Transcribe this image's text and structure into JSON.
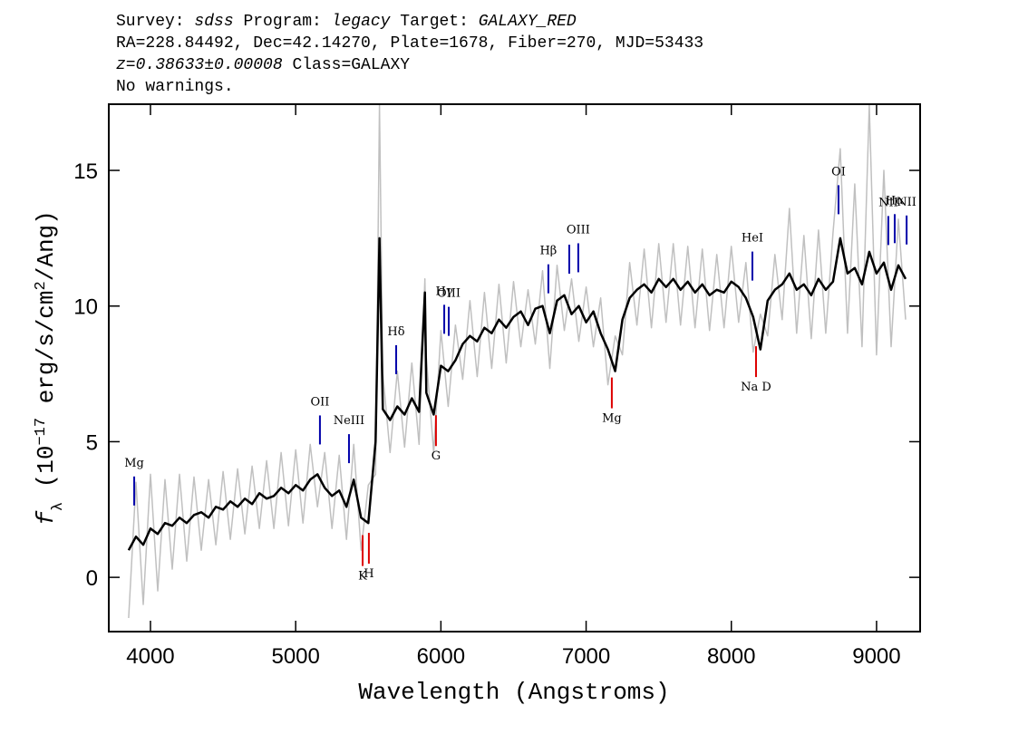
{
  "chart_data": {
    "type": "line",
    "header": [
      [
        {
          "text": "Survey: "
        },
        {
          "text": "sdss",
          "italic": true
        },
        {
          "text": " Program: "
        },
        {
          "text": "legacy",
          "italic": true
        },
        {
          "text": " Target: "
        },
        {
          "text": "GALAXY_RED",
          "italic": true
        }
      ],
      [
        {
          "text": "RA=228.84492, Dec=42.14270, Plate=1678, Fiber=270, MJD=53433"
        }
      ],
      [
        {
          "text": "z=0.38633±0.00008",
          "italic": true
        },
        {
          "text": " Class=GALAXY"
        }
      ],
      [
        {
          "text": "No warnings."
        }
      ]
    ],
    "x_label": "Wavelength (Angstroms)",
    "y_label": [
      {
        "text": "f",
        "italic": true
      },
      {
        "text": "λ",
        "shift": "sub"
      },
      {
        "text": " (10"
      },
      {
        "text": "−17",
        "shift": "super"
      },
      {
        "text": " erg/s/cm"
      },
      {
        "text": "2",
        "shift": "super"
      },
      {
        "text": "/Ang)"
      }
    ],
    "xlim": [
      3713,
      9300
    ],
    "ylim": [
      -2.0,
      17.44
    ],
    "xticks": [
      4000,
      5000,
      6000,
      7000,
      8000,
      9000
    ],
    "yticks": [
      0,
      5,
      10,
      15
    ],
    "x": [
      3850,
      3900,
      3950,
      4000,
      4050,
      4100,
      4150,
      4200,
      4250,
      4300,
      4350,
      4400,
      4450,
      4500,
      4550,
      4600,
      4650,
      4700,
      4750,
      4800,
      4850,
      4900,
      4950,
      5000,
      5050,
      5100,
      5150,
      5200,
      5250,
      5300,
      5350,
      5400,
      5450,
      5500,
      5550,
      5577,
      5600,
      5650,
      5700,
      5750,
      5800,
      5850,
      5890,
      5900,
      5950,
      6000,
      6050,
      6100,
      6150,
      6200,
      6250,
      6300,
      6350,
      6400,
      6450,
      6500,
      6550,
      6600,
      6650,
      6700,
      6750,
      6800,
      6850,
      6900,
      6950,
      7000,
      7050,
      7100,
      7150,
      7200,
      7250,
      7300,
      7350,
      7400,
      7450,
      7500,
      7550,
      7600,
      7650,
      7700,
      7750,
      7800,
      7850,
      7900,
      7950,
      8000,
      8050,
      8100,
      8150,
      8200,
      8250,
      8300,
      8350,
      8400,
      8450,
      8500,
      8550,
      8600,
      8650,
      8700,
      8750,
      8800,
      8850,
      8900,
      8950,
      9000,
      9050,
      9100,
      9150,
      9200
    ],
    "series": [
      {
        "color": "#c0c0c0",
        "values": [
          -1.5,
          3.5,
          -1.0,
          3.8,
          -0.5,
          3.6,
          0.3,
          3.8,
          0.6,
          3.7,
          1.0,
          3.6,
          1.2,
          3.9,
          1.4,
          4.0,
          1.6,
          4.1,
          1.8,
          4.3,
          1.8,
          4.6,
          1.9,
          4.7,
          2.0,
          4.9,
          2.6,
          4.6,
          1.8,
          4.5,
          1.4,
          4.9,
          1.0,
          3.4,
          3.8,
          17.4,
          7.5,
          4.6,
          7.6,
          4.8,
          7.9,
          4.9,
          11.0,
          8.1,
          4.6,
          9.1,
          6.3,
          9.3,
          7.3,
          10.2,
          7.4,
          10.5,
          7.7,
          10.8,
          7.9,
          10.9,
          8.5,
          10.6,
          8.6,
          11.3,
          7.7,
          11.5,
          9.1,
          11.0,
          8.7,
          10.7,
          8.5,
          10.3,
          7.1,
          8.9,
          8.2,
          11.6,
          9.3,
          12.1,
          9.2,
          12.3,
          9.4,
          12.3,
          9.3,
          12.2,
          9.2,
          12.1,
          9.1,
          11.9,
          9.2,
          12.2,
          9.4,
          11.6,
          8.3,
          9.7,
          8.9,
          11.9,
          9.5,
          13.6,
          9.0,
          12.6,
          8.8,
          12.8,
          9.0,
          12.7,
          15.8,
          9.0,
          14.5,
          8.5,
          17.4,
          8.2,
          15.0,
          8.5,
          13.2,
          9.5
        ]
      },
      {
        "color": "#000000",
        "values": [
          1.0,
          1.5,
          1.2,
          1.8,
          1.6,
          2.0,
          1.9,
          2.2,
          2.0,
          2.3,
          2.4,
          2.2,
          2.6,
          2.5,
          2.8,
          2.6,
          2.9,
          2.7,
          3.1,
          2.9,
          3.0,
          3.3,
          3.1,
          3.4,
          3.2,
          3.6,
          3.8,
          3.3,
          3.0,
          3.2,
          2.6,
          3.6,
          2.2,
          2.0,
          5.0,
          12.5,
          6.2,
          5.8,
          6.3,
          6.0,
          6.6,
          6.1,
          10.5,
          6.8,
          6.0,
          7.8,
          7.6,
          8.0,
          8.6,
          8.9,
          8.7,
          9.2,
          9.0,
          9.5,
          9.2,
          9.6,
          9.8,
          9.3,
          9.9,
          10.0,
          9.0,
          10.2,
          10.4,
          9.7,
          10.0,
          9.4,
          9.8,
          9.0,
          8.4,
          7.6,
          9.5,
          10.3,
          10.6,
          10.8,
          10.5,
          11.0,
          10.7,
          11.0,
          10.6,
          10.9,
          10.5,
          10.8,
          10.4,
          10.6,
          10.5,
          10.9,
          10.7,
          10.3,
          9.6,
          8.4,
          10.2,
          10.6,
          10.8,
          11.2,
          10.6,
          10.8,
          10.4,
          11.0,
          10.6,
          10.9,
          12.5,
          11.2,
          11.4,
          10.8,
          12.0,
          11.2,
          11.6,
          10.6,
          11.5,
          11.0
        ]
      }
    ],
    "lines": [
      {
        "label": "Mg",
        "wavelength": 3888,
        "kind": "emission",
        "color": "#0000aa"
      },
      {
        "label": "OII",
        "wavelength": 5167,
        "kind": "emission",
        "color": "#0000aa"
      },
      {
        "label": "NeIII",
        "wavelength": 5367,
        "kind": "emission",
        "color": "#0000aa"
      },
      {
        "label": "Hδ",
        "wavelength": 5692,
        "kind": "emission",
        "color": "#0000aa"
      },
      {
        "label": "Hγ",
        "wavelength": 6023,
        "kind": "emission",
        "color": "#0000aa"
      },
      {
        "label": "OIII",
        "wavelength": 6054,
        "kind": "emission",
        "color": "#0000aa"
      },
      {
        "label": "Hβ",
        "wavelength": 6740,
        "kind": "emission",
        "color": "#0000aa"
      },
      {
        "label": null,
        "wavelength": 6884,
        "kind": "emission",
        "color": "#0000aa"
      },
      {
        "label": "OIII",
        "wavelength": 6946,
        "kind": "emission",
        "color": "#0000aa"
      },
      {
        "label": "HeI",
        "wavelength": 8145,
        "kind": "emission",
        "color": "#0000aa"
      },
      {
        "label": "OI",
        "wavelength": 8738,
        "kind": "emission",
        "color": "#0000aa"
      },
      {
        "label": "NII",
        "wavelength": 9081,
        "kind": "emission",
        "color": "#0000aa"
      },
      {
        "label": "Hα",
        "wavelength": 9125,
        "kind": "emission",
        "color": "#0000aa"
      },
      {
        "label": "NII",
        "wavelength": 9207,
        "kind": "emission",
        "color": "#0000aa"
      },
      {
        "label": "K",
        "wavelength": 5461,
        "kind": "absorption",
        "color": "#dd0000"
      },
      {
        "label": "H",
        "wavelength": 5504,
        "kind": "absorption",
        "color": "#dd0000"
      },
      {
        "label": "G",
        "wavelength": 5966,
        "kind": "absorption",
        "color": "#dd0000"
      },
      {
        "label": "Mg",
        "wavelength": 7177,
        "kind": "absorption",
        "color": "#dd0000"
      },
      {
        "label": "Na D",
        "wavelength": 8170,
        "kind": "absorption",
        "color": "#dd0000"
      }
    ]
  }
}
